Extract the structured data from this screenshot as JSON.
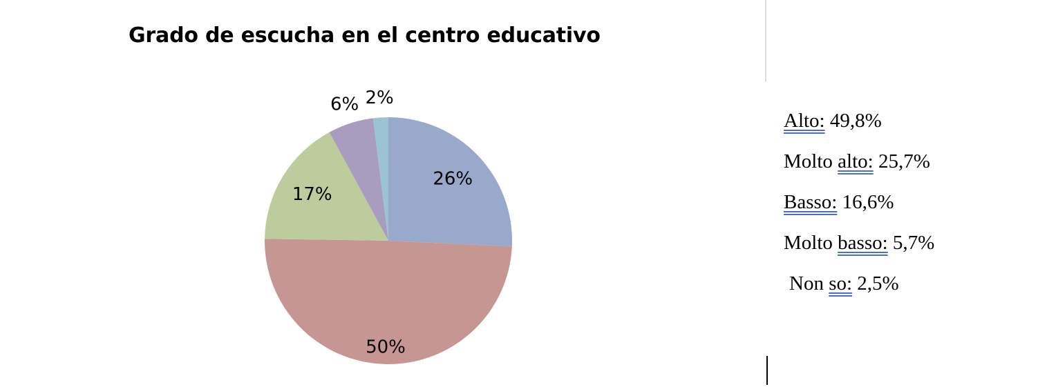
{
  "chart_data": {
    "type": "pie",
    "title": "Grado de escucha en el centro educativo",
    "slices": [
      {
        "value": 26,
        "label": "26%",
        "color": "#98a9cb"
      },
      {
        "value": 50,
        "label": "50%",
        "color": "#c69692"
      },
      {
        "value": 17,
        "label": "17%",
        "color": "#bdcc9c"
      },
      {
        "value": 6,
        "label": "6%",
        "color": "#a99dbf"
      },
      {
        "value": 2,
        "label": "2%",
        "color": "#9bc3d3"
      }
    ],
    "start": "12 o'clock",
    "direction": "clockwise"
  },
  "legend_text": [
    {
      "prefix": "",
      "underlined": "Alto:",
      "suffix": " 49,8%"
    },
    {
      "prefix": "Molto ",
      "underlined": "alto:",
      "suffix": " 25,7%"
    },
    {
      "prefix": "",
      "underlined": "Basso:",
      "suffix": " 16,6%"
    },
    {
      "prefix": "Molto ",
      "underlined": "basso:",
      "suffix": " 5,7%"
    },
    {
      "prefix": "Non ",
      "underlined": "so:",
      "suffix": " 2,5%"
    }
  ]
}
